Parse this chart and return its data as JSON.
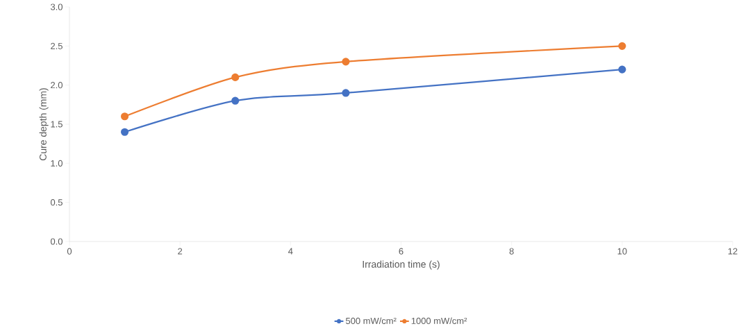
{
  "chart_data": {
    "type": "line",
    "xlabel": "Irradiation time (s)",
    "ylabel": "Cure depth (mm)",
    "x": [
      1,
      3,
      5,
      10
    ],
    "series": [
      {
        "name": "500 mW/cm²",
        "color": "#4472c4",
        "values": [
          1.4,
          1.8,
          1.9,
          2.2
        ]
      },
      {
        "name": "1000 mW/cm²",
        "color": "#ed7d31",
        "values": [
          1.6,
          2.1,
          2.3,
          2.5
        ]
      }
    ],
    "xlim": [
      0,
      12
    ],
    "xticks": [
      0,
      2,
      4,
      6,
      8,
      10,
      12
    ],
    "ylim": [
      0,
      3
    ],
    "yticks": [
      {
        "value": 0,
        "label": "0.0"
      },
      0.5,
      {
        "value": 1,
        "label": "1.0"
      },
      1.5,
      {
        "value": 2,
        "label": "2.0"
      },
      2.5,
      {
        "value": 3,
        "label": "3.0"
      }
    ],
    "grid": false,
    "legend": "bottom",
    "marker": "circle",
    "line_style": "solid"
  }
}
